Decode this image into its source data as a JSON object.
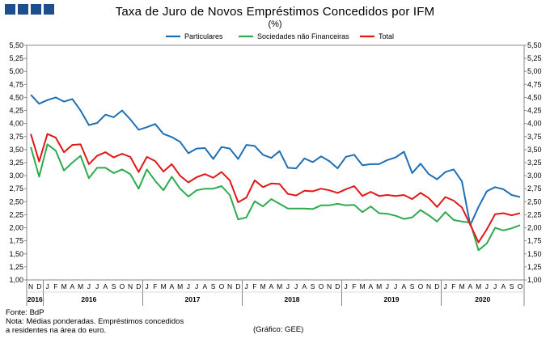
{
  "header": {
    "title": "Taxa de Juro de Novos Empréstimos Concedidos por IFM",
    "subtitle": "(%)"
  },
  "footer": {
    "source": "Fonte: BdP",
    "note_line1": "Nota: Médias ponderadas. Empréstimos concedidos",
    "note_line2": "a residentes na área do euro.",
    "credit": "(Gráfico: GEE)"
  },
  "colors": {
    "particulares": "#1f6fb5",
    "sociedades": "#2eaa4f",
    "total": "#e01818",
    "logo": "#1f4e8c"
  },
  "chart_data": {
    "type": "line",
    "ylim": [
      1.0,
      5.5
    ],
    "yticks": [
      "1,00",
      "1,25",
      "1,50",
      "1,75",
      "2,00",
      "2,25",
      "2,50",
      "2,75",
      "3,00",
      "3,25",
      "3,50",
      "3,75",
      "4,00",
      "4,25",
      "4,50",
      "4,75",
      "5,00",
      "5,25",
      "5,50"
    ],
    "month_labels": [
      "N",
      "D",
      "J",
      "F",
      "M",
      "A",
      "M",
      "J",
      "J",
      "A",
      "S",
      "O",
      "N",
      "D",
      "J",
      "F",
      "M",
      "A",
      "M",
      "J",
      "J",
      "A",
      "S",
      "O",
      "N",
      "D",
      "J",
      "F",
      "M",
      "A",
      "M",
      "J",
      "J",
      "A",
      "S",
      "O",
      "N",
      "D",
      "J",
      "F",
      "M",
      "A",
      "M",
      "J",
      "J",
      "A",
      "S",
      "O",
      "N",
      "D",
      "J",
      "F",
      "M",
      "A",
      "M",
      "J",
      "J",
      "A",
      "S",
      "O"
    ],
    "year_labels": [
      {
        "label": "2016",
        "index": 0.5
      },
      {
        "label": "2016",
        "index": 7
      },
      {
        "label": "2017",
        "index": 19.5
      },
      {
        "label": "2018",
        "index": 31.5
      },
      {
        "label": "2019",
        "index": 43.5
      },
      {
        "label": "2020",
        "index": 54.5
      }
    ],
    "series": [
      {
        "name": "Particulares",
        "color": "#1f6fb5",
        "values": [
          4.55,
          4.38,
          4.45,
          4.5,
          4.42,
          4.47,
          4.25,
          3.97,
          4.01,
          4.17,
          4.12,
          4.25,
          4.08,
          3.88,
          3.93,
          3.99,
          3.8,
          3.74,
          3.65,
          3.43,
          3.52,
          3.53,
          3.32,
          3.55,
          3.52,
          3.32,
          3.59,
          3.57,
          3.4,
          3.34,
          3.47,
          3.15,
          3.14,
          3.33,
          3.26,
          3.37,
          3.28,
          3.14,
          3.36,
          3.4,
          3.2,
          3.22,
          3.22,
          3.3,
          3.35,
          3.46,
          3.05,
          3.23,
          3.03,
          2.93,
          3.07,
          3.12,
          2.89,
          2.05,
          2.4,
          2.7,
          2.78,
          2.74,
          2.63,
          2.59
        ]
      },
      {
        "name": "Sociedades não Financeiras",
        "color": "#2eaa4f",
        "values": [
          3.55,
          2.98,
          3.6,
          3.48,
          3.1,
          3.25,
          3.38,
          2.95,
          3.15,
          3.15,
          3.05,
          3.12,
          3.03,
          2.75,
          3.12,
          2.9,
          2.72,
          2.98,
          2.75,
          2.6,
          2.72,
          2.75,
          2.75,
          2.8,
          2.63,
          2.16,
          2.2,
          2.51,
          2.41,
          2.55,
          2.46,
          2.37,
          2.37,
          2.37,
          2.36,
          2.43,
          2.43,
          2.46,
          2.43,
          2.44,
          2.3,
          2.41,
          2.28,
          2.27,
          2.23,
          2.17,
          2.2,
          2.34,
          2.24,
          2.12,
          2.3,
          2.15,
          2.12,
          2.1,
          1.57,
          1.7,
          2.0,
          1.95,
          1.99,
          2.05
        ]
      },
      {
        "name": "Total",
        "color": "#e01818",
        "values": [
          3.8,
          3.27,
          3.8,
          3.73,
          3.45,
          3.59,
          3.6,
          3.22,
          3.38,
          3.45,
          3.35,
          3.42,
          3.36,
          3.07,
          3.36,
          3.28,
          3.08,
          3.22,
          3.0,
          2.87,
          2.97,
          3.03,
          2.96,
          3.07,
          2.91,
          2.49,
          2.58,
          2.91,
          2.78,
          2.85,
          2.84,
          2.65,
          2.62,
          2.71,
          2.7,
          2.75,
          2.72,
          2.67,
          2.74,
          2.8,
          2.61,
          2.69,
          2.61,
          2.63,
          2.61,
          2.63,
          2.55,
          2.67,
          2.57,
          2.4,
          2.59,
          2.52,
          2.39,
          2.06,
          1.72,
          1.97,
          2.26,
          2.28,
          2.24,
          2.28
        ]
      }
    ]
  }
}
